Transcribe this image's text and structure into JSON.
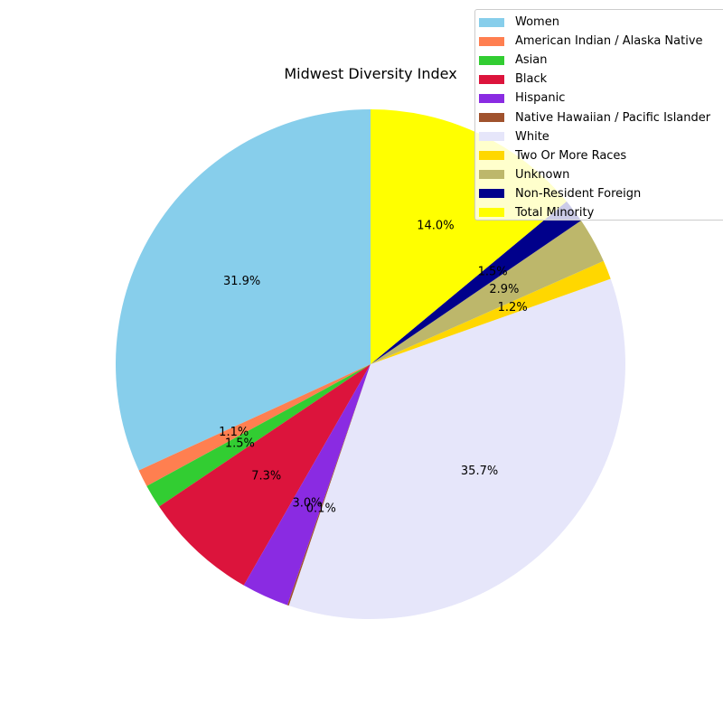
{
  "chart_data": {
    "type": "pie",
    "title": "Midwest Diversity Index",
    "start_angle_deg": 90,
    "direction": "counterclockwise",
    "legend_position": "top-right",
    "slices": [
      {
        "label": "Women",
        "value": 31.9,
        "pct_label": "31.9%",
        "color": "#87CEEB"
      },
      {
        "label": "American Indian / Alaska Native",
        "value": 1.1,
        "pct_label": "1.1%",
        "color": "#FF7F50"
      },
      {
        "label": "Asian",
        "value": 1.5,
        "pct_label": "1.5%",
        "color": "#32CD32"
      },
      {
        "label": "Black",
        "value": 7.3,
        "pct_label": "7.3%",
        "color": "#DC143C"
      },
      {
        "label": "Hispanic",
        "value": 3.0,
        "pct_label": "3.0%",
        "color": "#8A2BE2"
      },
      {
        "label": "Native Hawaiian / Pacific Islander",
        "value": 0.1,
        "pct_label": "0.1%",
        "color": "#A0522D"
      },
      {
        "label": "White",
        "value": 35.7,
        "pct_label": "35.7%",
        "color": "#E6E6FA"
      },
      {
        "label": "Two Or More Races",
        "value": 1.2,
        "pct_label": "1.2%",
        "color": "#FFD700"
      },
      {
        "label": "Unknown",
        "value": 2.9,
        "pct_label": "2.9%",
        "color": "#BDB76B"
      },
      {
        "label": "Non-Resident Foreign",
        "value": 1.5,
        "pct_label": "1.5%",
        "color": "#00008B"
      },
      {
        "label": "Total Minority",
        "value": 14.0,
        "pct_label": "14.0%",
        "color": "#FFFF00"
      }
    ]
  }
}
